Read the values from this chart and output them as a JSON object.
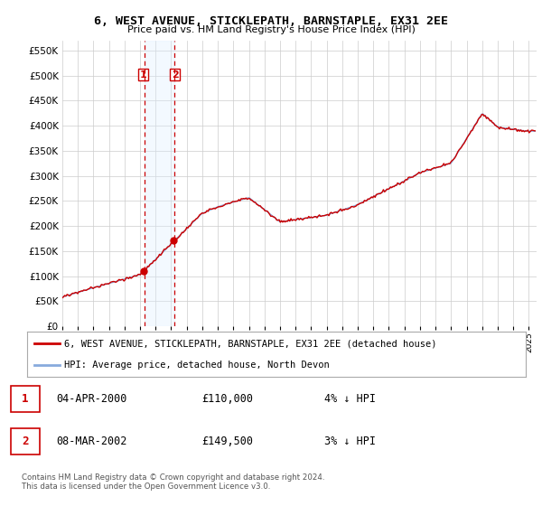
{
  "title": "6, WEST AVENUE, STICKLEPATH, BARNSTAPLE, EX31 2EE",
  "subtitle": "Price paid vs. HM Land Registry's House Price Index (HPI)",
  "legend_label_red": "6, WEST AVENUE, STICKLEPATH, BARNSTAPLE, EX31 2EE (detached house)",
  "legend_label_blue": "HPI: Average price, detached house, North Devon",
  "transaction_1_date": "04-APR-2000",
  "transaction_1_price": "£110,000",
  "transaction_1_hpi": "4% ↓ HPI",
  "transaction_2_date": "08-MAR-2002",
  "transaction_2_price": "£149,500",
  "transaction_2_hpi": "3% ↓ HPI",
  "footer": "Contains HM Land Registry data © Crown copyright and database right 2024.\nThis data is licensed under the Open Government Licence v3.0.",
  "ylim": [
    0,
    570000
  ],
  "yticks": [
    0,
    50000,
    100000,
    150000,
    200000,
    250000,
    300000,
    350000,
    400000,
    450000,
    500000,
    550000
  ],
  "color_red": "#cc0000",
  "color_blue": "#88aadd",
  "color_vline": "#cc0000",
  "color_highlight": "#ddeeff",
  "grid_color": "#cccccc",
  "t1_x": 2000.27,
  "t2_x": 2002.19,
  "xmin": 1995.0,
  "xmax": 2025.5
}
